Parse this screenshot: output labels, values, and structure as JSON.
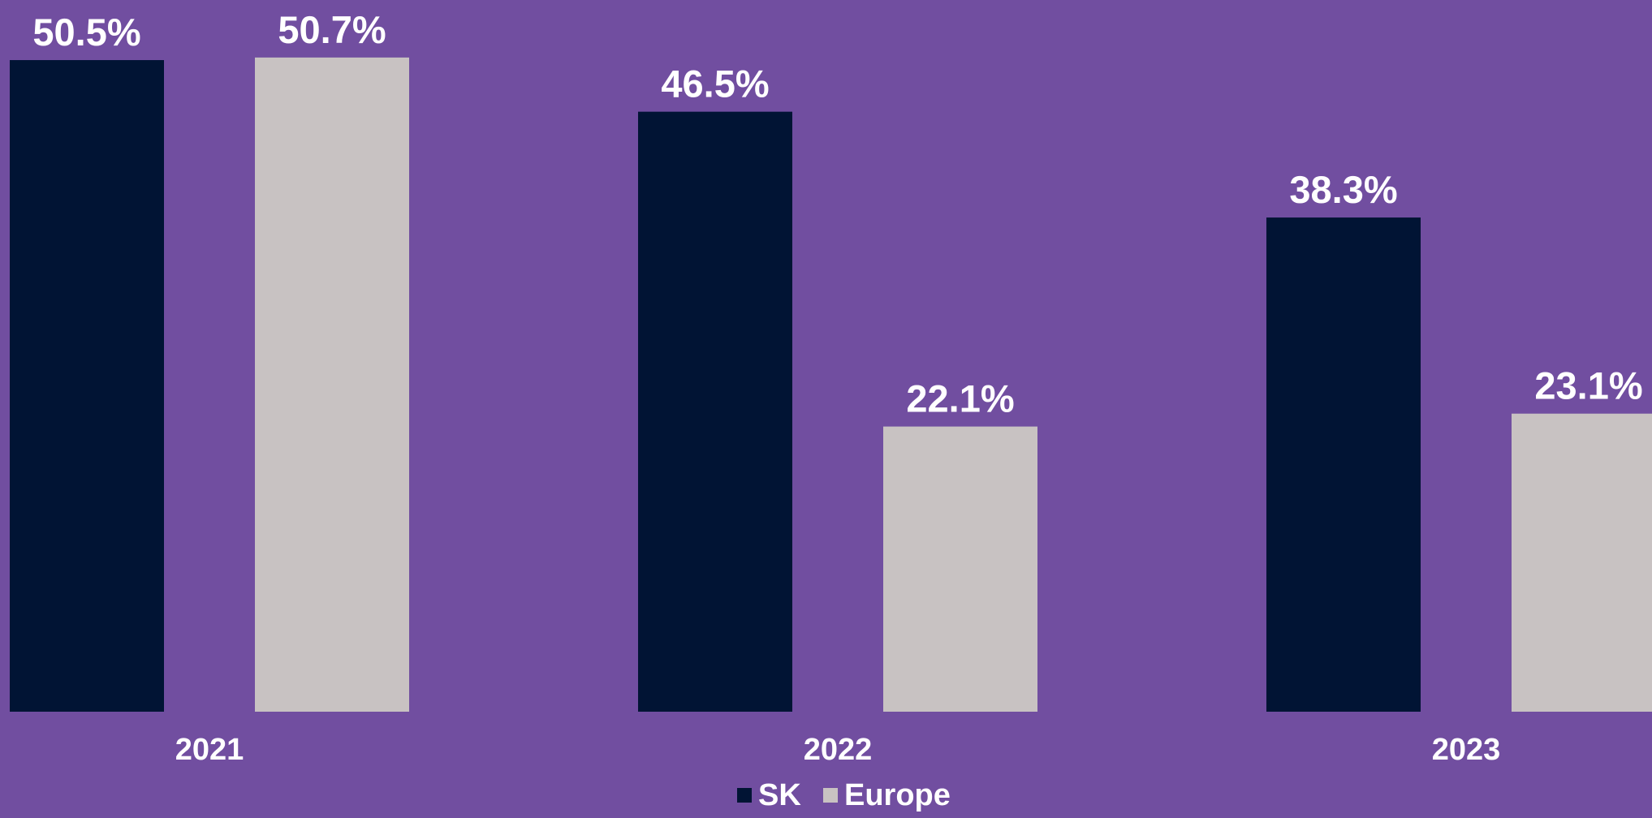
{
  "background_color": "#714ea0",
  "chart_data": {
    "type": "bar",
    "categories": [
      "2021",
      "2022",
      "2023"
    ],
    "series": [
      {
        "name": "SK",
        "color": "#011434",
        "values": [
          50.5,
          46.5,
          38.3
        ],
        "labels": [
          "50.5%",
          "46.5%",
          "38.3%"
        ]
      },
      {
        "name": "Europe",
        "color": "#c8c2c2",
        "values": [
          50.7,
          22.1,
          23.1
        ],
        "labels": [
          "50.7%",
          "22.1%",
          "23.1%"
        ]
      }
    ],
    "title": "",
    "xlabel": "",
    "ylabel": "",
    "ylim": [
      0,
      55
    ],
    "grid": false,
    "legend_position": "bottom-center"
  }
}
